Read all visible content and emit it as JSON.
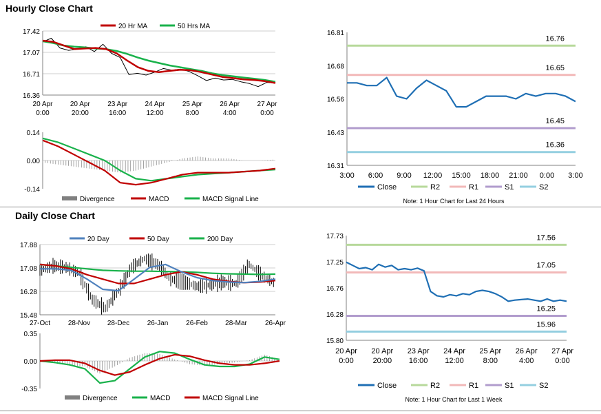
{
  "sections": {
    "hourly_title": "Hourly Close Chart",
    "daily_title": "Daily Close Chart"
  },
  "colors": {
    "red": "#c00000",
    "green": "#19b24b",
    "blue_close": "#1f6fb4",
    "blue_ma": "#4f81bd",
    "r2": "#b7d99b",
    "r1": "#f2b8b8",
    "s1": "#b19ccd",
    "s2": "#94cfe0",
    "grey": "#808080"
  },
  "chart_data": [
    {
      "id": "hourly_price",
      "type": "line",
      "ylim": [
        16.36,
        17.42
      ],
      "y_ticks": [
        "17.42",
        "17.07",
        "16.71",
        "16.36"
      ],
      "x_tick_labels": [
        [
          "20 Apr",
          "0:00"
        ],
        [
          "20 Apr",
          "20:00"
        ],
        [
          "23 Apr",
          "16:00"
        ],
        [
          "24 Apr",
          "12:00"
        ],
        [
          "25 Apr",
          "8:00"
        ],
        [
          "26 Apr",
          "4:00"
        ],
        [
          "27 Apr",
          "0:00"
        ]
      ],
      "legend": [
        "20 Hr MA",
        "50 Hrs MA"
      ],
      "series": [
        {
          "name": "20 Hr MA",
          "values": [
            17.26,
            17.24,
            17.18,
            17.12,
            17.13,
            17.14,
            17.12,
            17.05,
            16.93,
            16.82,
            16.76,
            16.74,
            16.76,
            16.78,
            16.77,
            16.74,
            16.7,
            16.66,
            16.64,
            16.62,
            16.61,
            16.59,
            16.56
          ]
        },
        {
          "name": "50 Hrs MA",
          "values": [
            17.25,
            17.22,
            17.18,
            17.16,
            17.15,
            17.13,
            17.12,
            17.09,
            17.04,
            16.98,
            16.93,
            16.89,
            16.85,
            16.82,
            16.79,
            16.76,
            16.72,
            16.69,
            16.67,
            16.65,
            16.63,
            16.61,
            16.58
          ]
        },
        {
          "name": "Price",
          "values": [
            17.24,
            17.3,
            17.14,
            17.1,
            17.12,
            17.16,
            17.08,
            17.2,
            17.05,
            16.98,
            16.7,
            16.72,
            16.69,
            16.74,
            16.8,
            16.77,
            16.79,
            16.75,
            16.68,
            16.6,
            16.64,
            16.61,
            16.62,
            16.58,
            16.55,
            16.5,
            16.57,
            16.56
          ]
        }
      ]
    },
    {
      "id": "hourly_macd",
      "type": "line",
      "ylim": [
        -0.14,
        0.14
      ],
      "y_ticks": [
        "0.14",
        "0.00",
        "-0.14"
      ],
      "legend": [
        "Divergence",
        "MACD",
        "MACD Signal Line"
      ],
      "series": [
        {
          "name": "MACD",
          "values": [
            0.1,
            0.07,
            0.03,
            -0.01,
            -0.05,
            -0.11,
            -0.12,
            -0.11,
            -0.09,
            -0.07,
            -0.06,
            -0.06,
            -0.06,
            -0.055,
            -0.05,
            -0.04
          ]
        },
        {
          "name": "MACD Signal Line",
          "values": [
            0.11,
            0.09,
            0.06,
            0.03,
            0.0,
            -0.05,
            -0.09,
            -0.1,
            -0.09,
            -0.08,
            -0.07,
            -0.065,
            -0.06,
            -0.055,
            -0.05,
            -0.045
          ]
        },
        {
          "name": "Divergence",
          "values": [
            -0.01,
            -0.02,
            -0.03,
            -0.04,
            -0.05,
            -0.06,
            -0.05,
            -0.03,
            -0.01,
            0.01,
            0.02,
            0.01,
            0.01,
            0.0,
            0.0,
            0.005
          ]
        }
      ]
    },
    {
      "id": "hourly_levels",
      "type": "line",
      "ylim": [
        16.31,
        16.81
      ],
      "y_ticks": [
        "16.81",
        "16.68",
        "16.56",
        "16.43",
        "16.31"
      ],
      "x_ticks": [
        "3:00",
        "6:00",
        "9:00",
        "12:00",
        "15:00",
        "18:00",
        "21:00",
        "0:00",
        "3:00"
      ],
      "levels": [
        {
          "name": "R2",
          "value": 16.76,
          "label": "16.76"
        },
        {
          "name": "R1",
          "value": 16.65,
          "label": "16.65"
        },
        {
          "name": "S1",
          "value": 16.45,
          "label": "16.45"
        },
        {
          "name": "S2",
          "value": 16.36,
          "label": "16.36"
        }
      ],
      "series": [
        {
          "name": "Close",
          "values": [
            16.62,
            16.62,
            16.61,
            16.61,
            16.64,
            16.57,
            16.56,
            16.6,
            16.63,
            16.61,
            16.59,
            16.53,
            16.53,
            16.55,
            16.57,
            16.57,
            16.57,
            16.56,
            16.58,
            16.57,
            16.58,
            16.58,
            16.57,
            16.55
          ]
        }
      ],
      "legend": [
        "Close",
        "R2",
        "R1",
        "S1",
        "S2"
      ],
      "note": "Note: 1 Hour Chart for Last 24 Hours"
    },
    {
      "id": "daily_price",
      "type": "line",
      "ylim": [
        15.48,
        17.88
      ],
      "y_ticks": [
        "17.88",
        "17.08",
        "16.28",
        "15.48"
      ],
      "x_ticks": [
        "27-Oct",
        "28-Nov",
        "28-Dec",
        "26-Jan",
        "26-Feb",
        "28-Mar",
        "26-Apr"
      ],
      "legend": [
        "20 Day",
        "50 Day",
        "200 Day"
      ],
      "series": [
        {
          "name": "20 Day",
          "values": [
            17.05,
            17.05,
            17.0,
            16.7,
            16.35,
            16.3,
            16.7,
            17.1,
            17.2,
            16.95,
            16.75,
            16.65,
            16.6,
            16.58,
            16.62,
            16.7
          ]
        },
        {
          "name": "50 Day",
          "values": [
            17.2,
            17.15,
            17.05,
            16.85,
            16.7,
            16.55,
            16.55,
            16.7,
            16.85,
            16.95,
            16.85,
            16.7,
            16.62,
            16.58,
            16.6,
            16.65
          ]
        },
        {
          "name": "200 Day",
          "values": [
            17.2,
            17.15,
            17.1,
            17.05,
            17.0,
            16.98,
            16.97,
            16.97,
            16.96,
            16.95,
            16.93,
            16.9,
            16.88,
            16.87,
            16.86,
            16.87
          ]
        },
        {
          "name": "Price",
          "values": [
            17.0,
            17.15,
            17.1,
            16.9,
            16.0,
            15.7,
            16.3,
            17.1,
            17.4,
            17.2,
            16.7,
            16.6,
            16.45,
            16.5,
            16.6,
            16.55,
            17.2,
            16.8,
            16.55
          ]
        }
      ]
    },
    {
      "id": "daily_macd",
      "type": "line",
      "ylim": [
        -0.35,
        0.35
      ],
      "y_ticks": [
        "0.35",
        "0.00",
        "-0.35"
      ],
      "legend": [
        "Divergence",
        "MACD",
        "MACD Signal Line"
      ],
      "series": [
        {
          "name": "MACD",
          "values": [
            0.0,
            -0.02,
            -0.05,
            -0.1,
            -0.28,
            -0.25,
            -0.1,
            0.05,
            0.12,
            0.1,
            0.02,
            -0.05,
            -0.07,
            -0.07,
            -0.04,
            0.05,
            0.02
          ]
        },
        {
          "name": "MACD Signal Line",
          "values": [
            0.0,
            0.01,
            0.01,
            -0.03,
            -0.12,
            -0.18,
            -0.14,
            -0.05,
            0.03,
            0.08,
            0.06,
            0.01,
            -0.03,
            -0.05,
            -0.05,
            -0.03,
            0.0
          ]
        },
        {
          "name": "Divergence",
          "values": [
            0.0,
            -0.03,
            -0.06,
            -0.07,
            -0.16,
            -0.07,
            0.04,
            0.1,
            0.09,
            0.02,
            -0.04,
            -0.06,
            -0.04,
            -0.02,
            0.01,
            0.08,
            0.02
          ]
        }
      ]
    },
    {
      "id": "daily_levels",
      "type": "line",
      "ylim": [
        15.8,
        17.73
      ],
      "y_ticks": [
        "17.73",
        "17.25",
        "16.76",
        "16.28",
        "15.80"
      ],
      "x_tick_labels": [
        [
          "20 Apr",
          "0:00"
        ],
        [
          "20 Apr",
          "20:00"
        ],
        [
          "23 Apr",
          "16:00"
        ],
        [
          "24 Apr",
          "12:00"
        ],
        [
          "25 Apr",
          "8:00"
        ],
        [
          "26 Apr",
          "4:00"
        ],
        [
          "27 Apr",
          "0:00"
        ]
      ],
      "levels": [
        {
          "name": "R2",
          "value": 17.56,
          "label": "17.56"
        },
        {
          "name": "R1",
          "value": 17.05,
          "label": "17.05"
        },
        {
          "name": "S1",
          "value": 16.25,
          "label": "16.25"
        },
        {
          "name": "S2",
          "value": 15.96,
          "label": "15.96"
        }
      ],
      "series": [
        {
          "name": "Close",
          "values": [
            17.24,
            17.18,
            17.12,
            17.14,
            17.1,
            17.2,
            17.15,
            17.18,
            17.1,
            17.12,
            17.1,
            17.13,
            17.08,
            16.7,
            16.62,
            16.6,
            16.64,
            16.62,
            16.66,
            16.64,
            16.7,
            16.72,
            16.7,
            16.66,
            16.6,
            16.52,
            16.54,
            16.55,
            16.56,
            16.54,
            16.52,
            16.56,
            16.52,
            16.54,
            16.52
          ]
        }
      ],
      "legend": [
        "Close",
        "R2",
        "R1",
        "S1",
        "S2"
      ],
      "note": "Note: 1 Hour Chart for Last 1 Week"
    }
  ]
}
